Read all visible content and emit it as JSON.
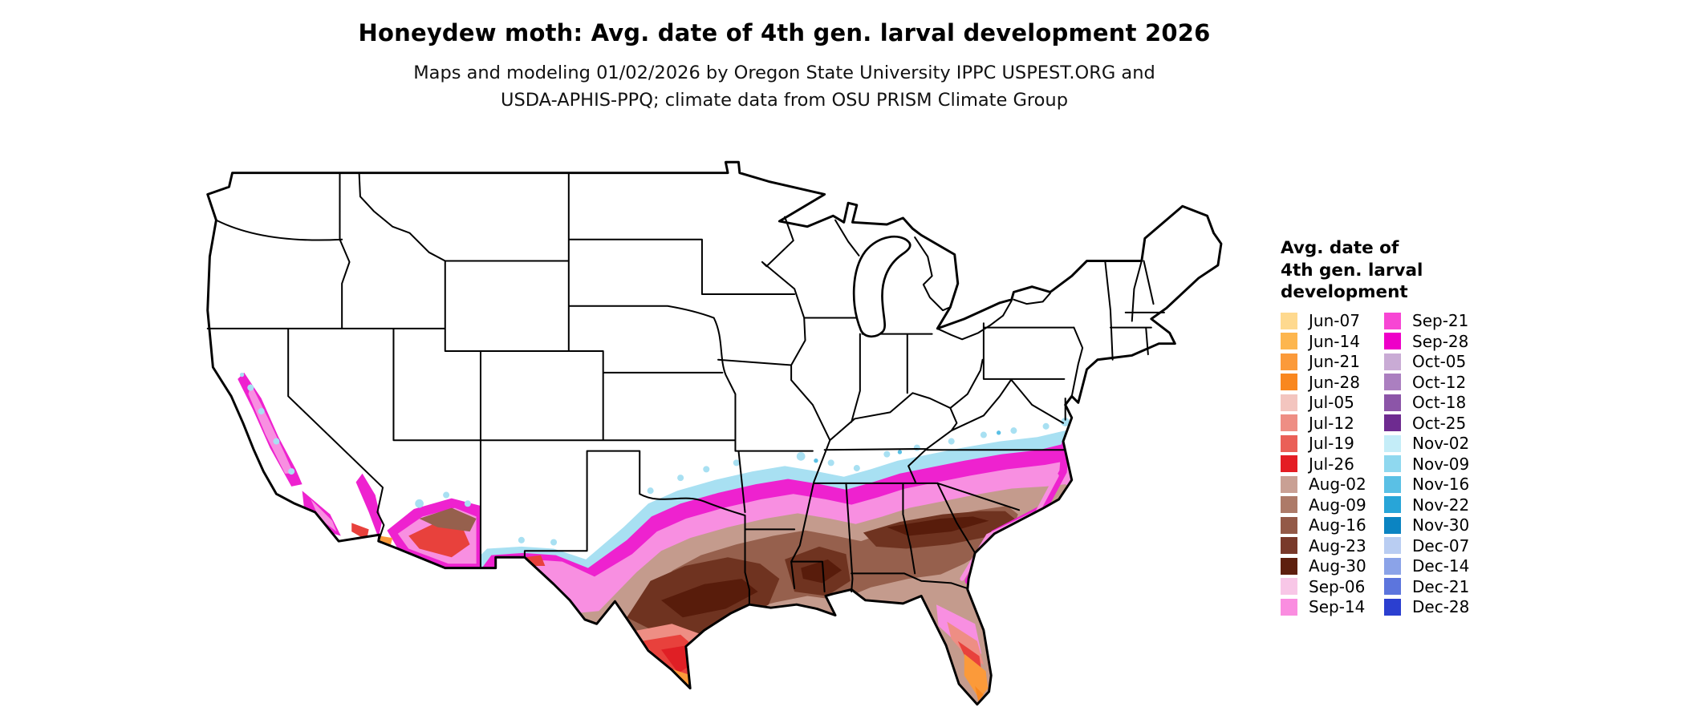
{
  "title": "Honeydew moth: Avg. date of 4th gen. larval development 2026",
  "subtitle": {
    "line1": "Maps and modeling 01/02/2026 by Oregon State University IPPC USPEST.ORG and",
    "line2": "USDA-APHIS-PPQ; climate data from OSU PRISM Climate Group"
  },
  "legend": {
    "title_lines": [
      "Avg. date of",
      "4th gen. larval",
      "development"
    ],
    "column1": [
      {
        "label": "Jun-07",
        "color": "#fed98f"
      },
      {
        "label": "Jun-14",
        "color": "#fdb64e"
      },
      {
        "label": "Jun-21",
        "color": "#fb9a3a"
      },
      {
        "label": "Jun-28",
        "color": "#f9871f"
      },
      {
        "label": "Jul-05",
        "color": "#f3c5bf"
      },
      {
        "label": "Jul-12",
        "color": "#ee8e84"
      },
      {
        "label": "Jul-19",
        "color": "#ea5f57"
      },
      {
        "label": "Jul-26",
        "color": "#e41d24"
      },
      {
        "label": "Aug-02",
        "color": "#c9a094"
      },
      {
        "label": "Aug-09",
        "color": "#ad7a68"
      },
      {
        "label": "Aug-16",
        "color": "#935947"
      },
      {
        "label": "Aug-23",
        "color": "#79392a"
      },
      {
        "label": "Aug-30",
        "color": "#5e1f0e"
      },
      {
        "label": "Sep-06",
        "color": "#f8c7e7"
      },
      {
        "label": "Sep-14",
        "color": "#fa8de0"
      }
    ],
    "column2": [
      {
        "label": "Sep-21",
        "color": "#f746d4"
      },
      {
        "label": "Sep-28",
        "color": "#ee00c8"
      },
      {
        "label": "Oct-05",
        "color": "#c9abd5"
      },
      {
        "label": "Oct-12",
        "color": "#ab7fc0"
      },
      {
        "label": "Oct-18",
        "color": "#8c55a8"
      },
      {
        "label": "Oct-25",
        "color": "#6e2b90"
      },
      {
        "label": "Nov-02",
        "color": "#c4edf8"
      },
      {
        "label": "Nov-09",
        "color": "#8fd8ef"
      },
      {
        "label": "Nov-16",
        "color": "#5ac0e5"
      },
      {
        "label": "Nov-22",
        "color": "#28a5d8"
      },
      {
        "label": "Nov-30",
        "color": "#0b84c2"
      },
      {
        "label": "Dec-07",
        "color": "#b9cdf2"
      },
      {
        "label": "Dec-14",
        "color": "#8ba3e8"
      },
      {
        "label": "Dec-21",
        "color": "#5c75dd"
      },
      {
        "label": "Dec-28",
        "color": "#2b3fd0"
      }
    ]
  }
}
